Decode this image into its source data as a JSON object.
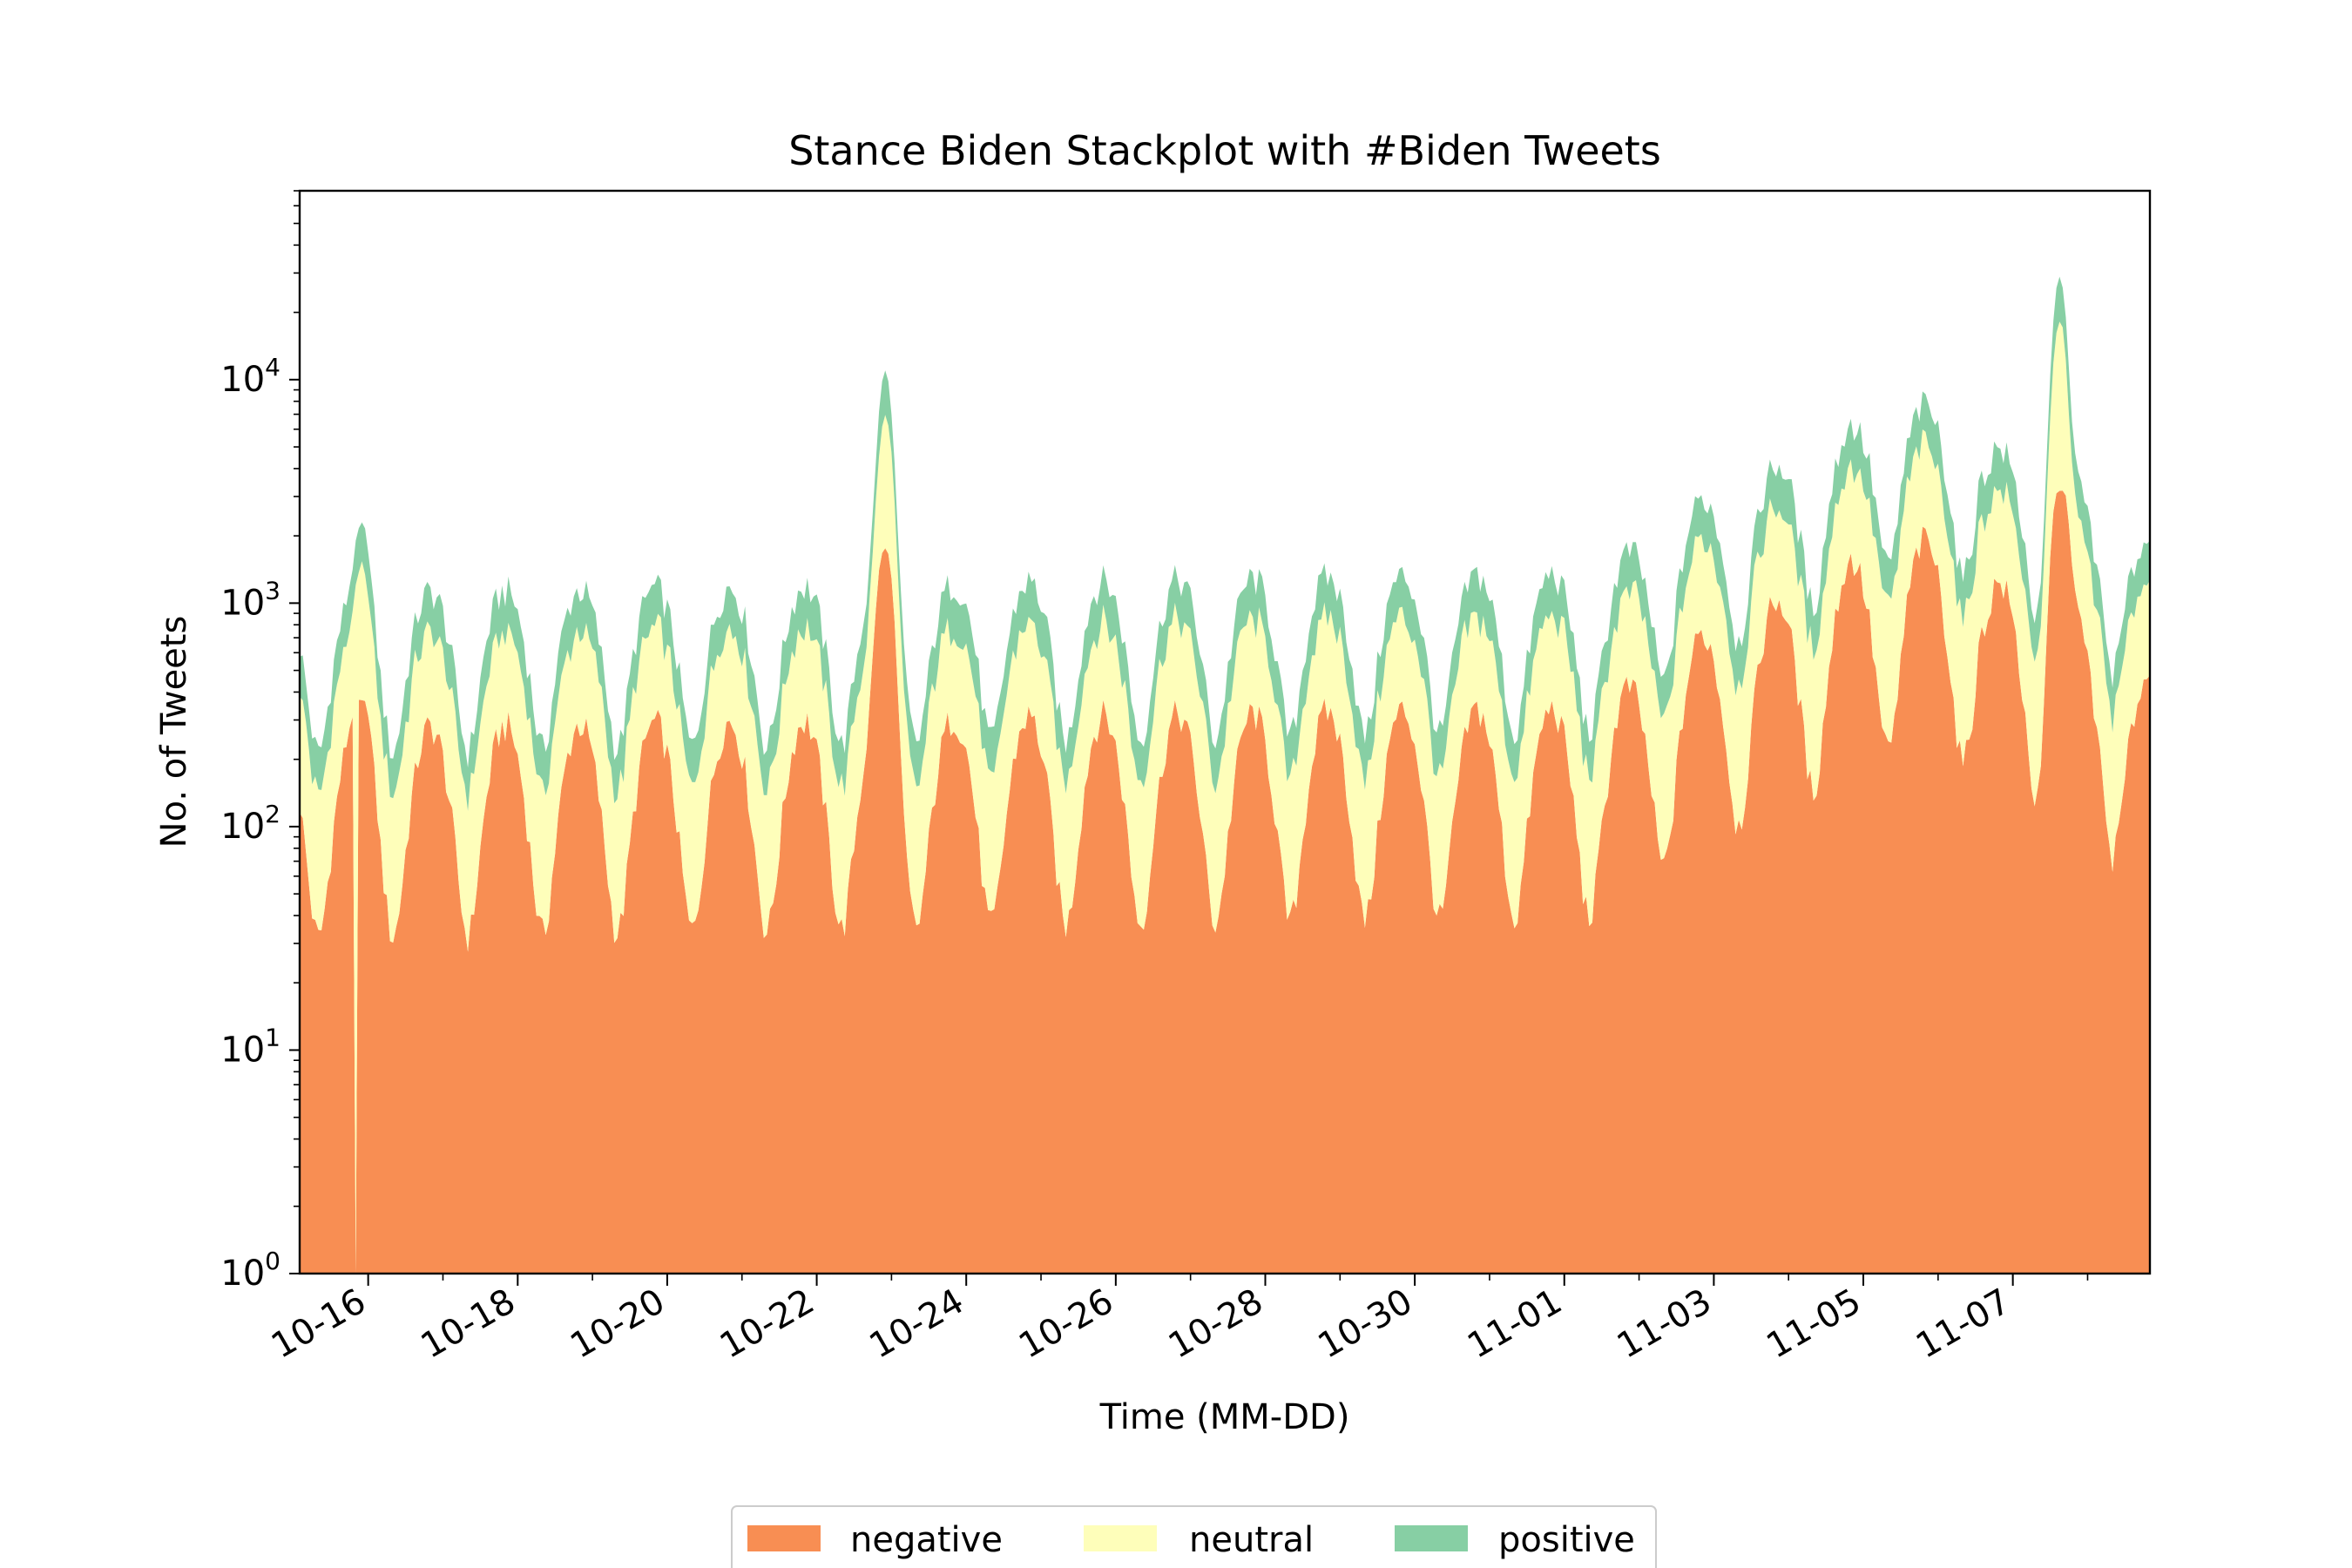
{
  "chart_data": {
    "type": "area",
    "stacked": true,
    "title": "Stance Biden Stackplot with #Biden Tweets",
    "xlabel": "Time (MM-DD)",
    "ylabel": "No. of Tweets",
    "yscale": "log",
    "ylim": [
      1,
      70000
    ],
    "xlim": [
      "10-15 02:00",
      "11-08 20:00"
    ],
    "x_tick_labels": [
      "10-16",
      "10-18",
      "10-20",
      "10-22",
      "10-24",
      "10-26",
      "10-28",
      "10-30",
      "11-01",
      "11-03",
      "11-05",
      "11-07"
    ],
    "y_ticks": [
      {
        "value": 1,
        "base": "10",
        "exp": "0"
      },
      {
        "value": 10,
        "base": "10",
        "exp": "1"
      },
      {
        "value": 100,
        "base": "10",
        "exp": "2"
      },
      {
        "value": 1000,
        "base": "10",
        "exp": "3"
      },
      {
        "value": 10000,
        "base": "10",
        "exp": "4"
      }
    ],
    "grid": false,
    "legend_position": "bottom-center",
    "series": [
      {
        "name": "negative",
        "color": "#f88e53"
      },
      {
        "name": "neutral",
        "color": "#fefeba"
      },
      {
        "name": "positive",
        "color": "#87cfa4"
      }
    ],
    "profile": {
      "time_step": "hour",
      "start": "10-15 02:00",
      "peaks": [
        {
          "time": "10-15 22:00",
          "total": 2300,
          "negative_share": 0.16
        },
        {
          "time": "10-22 22:00",
          "total": 11000,
          "negative_share": 0.16
        },
        {
          "time": "11-07 15:00",
          "total": 34000,
          "negative_share": 0.11
        }
      ],
      "negative_dropout": "10-15 20:00"
    }
  }
}
